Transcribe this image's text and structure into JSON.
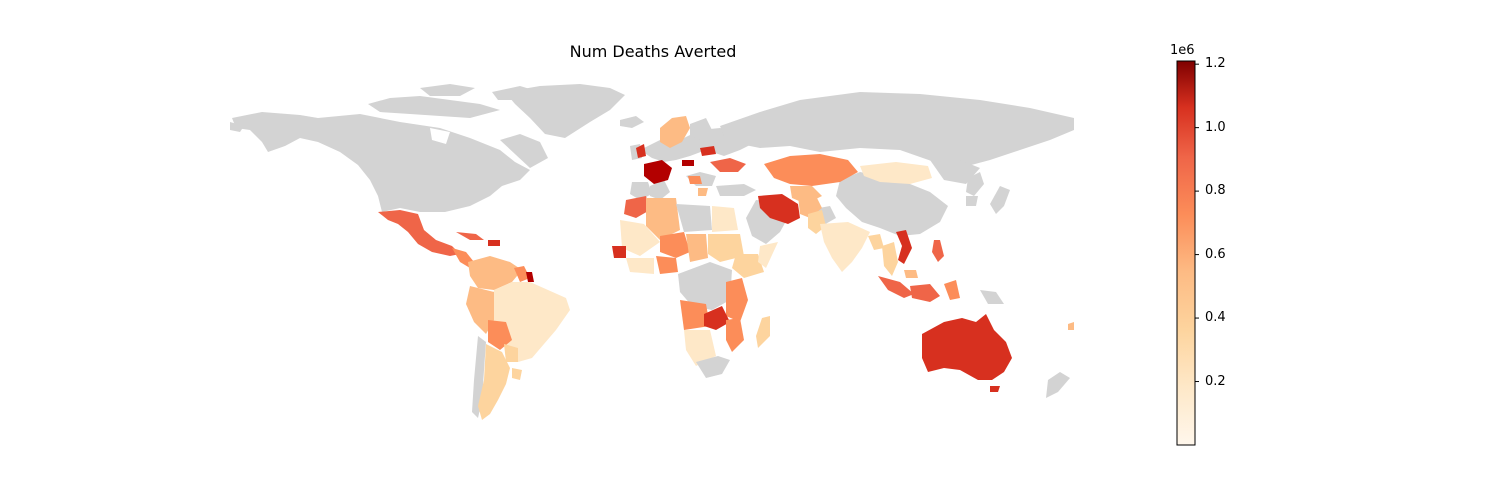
{
  "title": "Num Deaths Averted",
  "colorbar": {
    "exponent_label": "1e6",
    "tick_labels": [
      "1.2",
      "1.0",
      "0.8",
      "0.6",
      "0.4",
      "0.2"
    ],
    "tick_values": [
      1.2,
      1.0,
      0.8,
      0.6,
      0.4,
      0.2
    ],
    "min": 0.0,
    "max": 1.21,
    "colormap": "OrRd"
  },
  "colors": {
    "no_data_land": "#d3d3d3",
    "low": "#fff7ec",
    "high": "#7f0000"
  },
  "regions": [
    {
      "name": "Australia",
      "value": 0.95
    },
    {
      "name": "France",
      "value": 1.1
    },
    {
      "name": "Vietnam",
      "value": 0.95
    },
    {
      "name": "Iran",
      "value": 0.8
    },
    {
      "name": "Kazakhstan",
      "value": 0.65
    },
    {
      "name": "Mexico",
      "value": 0.7
    },
    {
      "name": "Brazil",
      "value": 0.15
    },
    {
      "name": "Argentina",
      "value": 0.3
    },
    {
      "name": "Zambia",
      "value": 0.95
    },
    {
      "name": "Mongolia",
      "value": 0.15
    },
    {
      "name": "India",
      "value": 0.1
    },
    {
      "name": "Indonesia",
      "value": 0.65
    }
  ]
}
